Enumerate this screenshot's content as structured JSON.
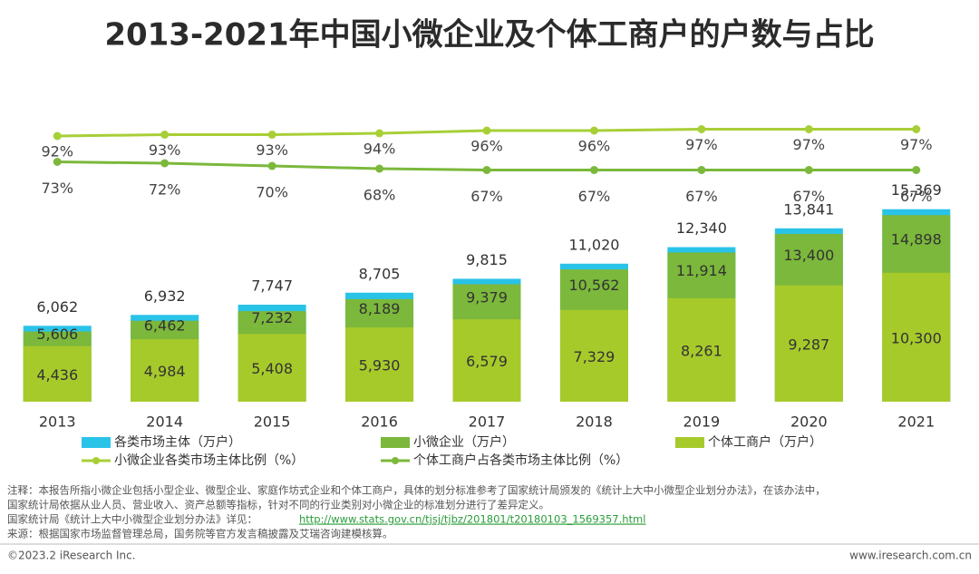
{
  "chart_data": {
    "type": "bar",
    "title": "2013-2021年中国小微企业及个体工商户的户数与占比",
    "categories": [
      "2013",
      "2014",
      "2015",
      "2016",
      "2017",
      "2018",
      "2019",
      "2020",
      "2021"
    ],
    "ylim": [
      0,
      16000
    ],
    "y2lim": [
      0,
      100
    ],
    "series": [
      {
        "name": "各类市场主体（万户）",
        "color": "#2ac3e8",
        "values": [
          6062,
          6932,
          7747,
          8705,
          9815,
          11020,
          12340,
          13841,
          15369
        ],
        "value_labels": [
          "6,062",
          "6,932",
          "7,747",
          "8,705",
          "9,815",
          "11,020",
          "12,340",
          "13,841",
          "15,369"
        ]
      },
      {
        "name": "小微企业（万户）",
        "color": "#7bb83b",
        "values": [
          5606,
          6462,
          7232,
          8189,
          9379,
          10562,
          11914,
          13400,
          14898
        ],
        "value_labels": [
          "5,606",
          "6,462",
          "7,232",
          "8,189",
          "9,379",
          "10,562",
          "11,914",
          "13,400",
          "14,898"
        ]
      },
      {
        "name": "个体工商户（万户）",
        "color": "#a7ca2b",
        "values": [
          4436,
          4984,
          5408,
          5930,
          6579,
          7329,
          8261,
          9287,
          10300
        ],
        "value_labels": [
          "4,436",
          "4,984",
          "5,408",
          "5,930",
          "6,579",
          "7,329",
          "8,261",
          "9,287",
          "10,300"
        ]
      },
      {
        "name": "小微企业各类市场主体比例（%）",
        "type": "line",
        "axis": "y2",
        "color": "#a8cf37",
        "values": [
          92,
          93,
          93,
          94,
          96,
          96,
          97,
          97,
          97
        ],
        "value_labels": [
          "92%",
          "93%",
          "93%",
          "94%",
          "96%",
          "96%",
          "97%",
          "97%",
          "97%"
        ]
      },
      {
        "name": "个体工商户占各类市场主体比例（%）",
        "type": "line",
        "axis": "y2",
        "color": "#7bb83b",
        "values": [
          73,
          72,
          70,
          68,
          67,
          67,
          67,
          67,
          67
        ],
        "value_labels": [
          "73%",
          "72%",
          "70%",
          "68%",
          "67%",
          "67%",
          "67%",
          "67%",
          "67%"
        ]
      }
    ]
  },
  "notes": [
    "注释：本报告所指小微企业包括小型企业、微型企业、家庭作坊式企业和个体工商户，具体的划分标准参考了国家统计局颁发的《统计上大中小微型企业划分办法》，在该办法中，",
    "国家统计局依据从业人员、营业收入、资产总额等指标，针对不同的行业类别对小微企业的标准划分进行了差异定义。",
    "国家统计局《统计上大中小微型企业划分办法》详见：",
    "http://www.stats.gov.cn/tjsj/tjbz/201801/t20180103_1569357.html",
    "来源：根据国家市场监督管理总局，国务院等官方发言稿披露及艾瑞咨询建模核算。"
  ],
  "copyright": "©2023.2 iResearch Inc.",
  "website": "www.iresearch.com.cn"
}
